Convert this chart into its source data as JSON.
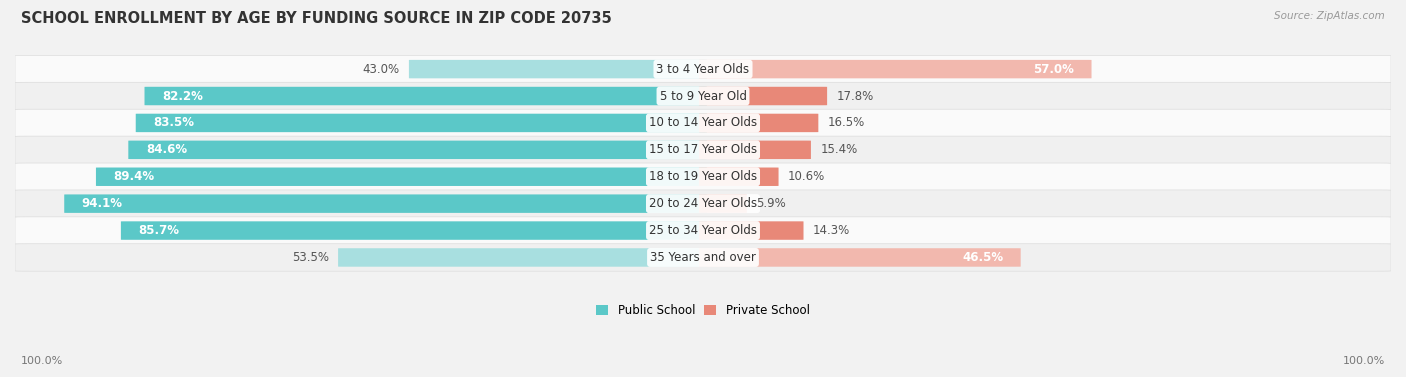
{
  "title": "SCHOOL ENROLLMENT BY AGE BY FUNDING SOURCE IN ZIP CODE 20735",
  "source": "Source: ZipAtlas.com",
  "categories": [
    "3 to 4 Year Olds",
    "5 to 9 Year Old",
    "10 to 14 Year Olds",
    "15 to 17 Year Olds",
    "18 to 19 Year Olds",
    "20 to 24 Year Olds",
    "25 to 34 Year Olds",
    "35 Years and over"
  ],
  "public_pct": [
    43.0,
    82.2,
    83.5,
    84.6,
    89.4,
    94.1,
    85.7,
    53.5
  ],
  "private_pct": [
    57.0,
    17.8,
    16.5,
    15.4,
    10.6,
    5.9,
    14.3,
    46.5
  ],
  "public_color": "#5BC8C8",
  "private_color": "#E88878",
  "pub_color_light": "#A8DFE0",
  "priv_color_light": "#F2B8AE",
  "bg_color": "#F2F2F2",
  "row_bg_color": "#FAFAFA",
  "row_alt_color": "#F0F0F0",
  "divider_color": "#DDDDDD",
  "title_fontsize": 10.5,
  "label_fontsize": 8.5,
  "cat_fontsize": 8.5,
  "tick_fontsize": 8,
  "legend_fontsize": 8.5
}
